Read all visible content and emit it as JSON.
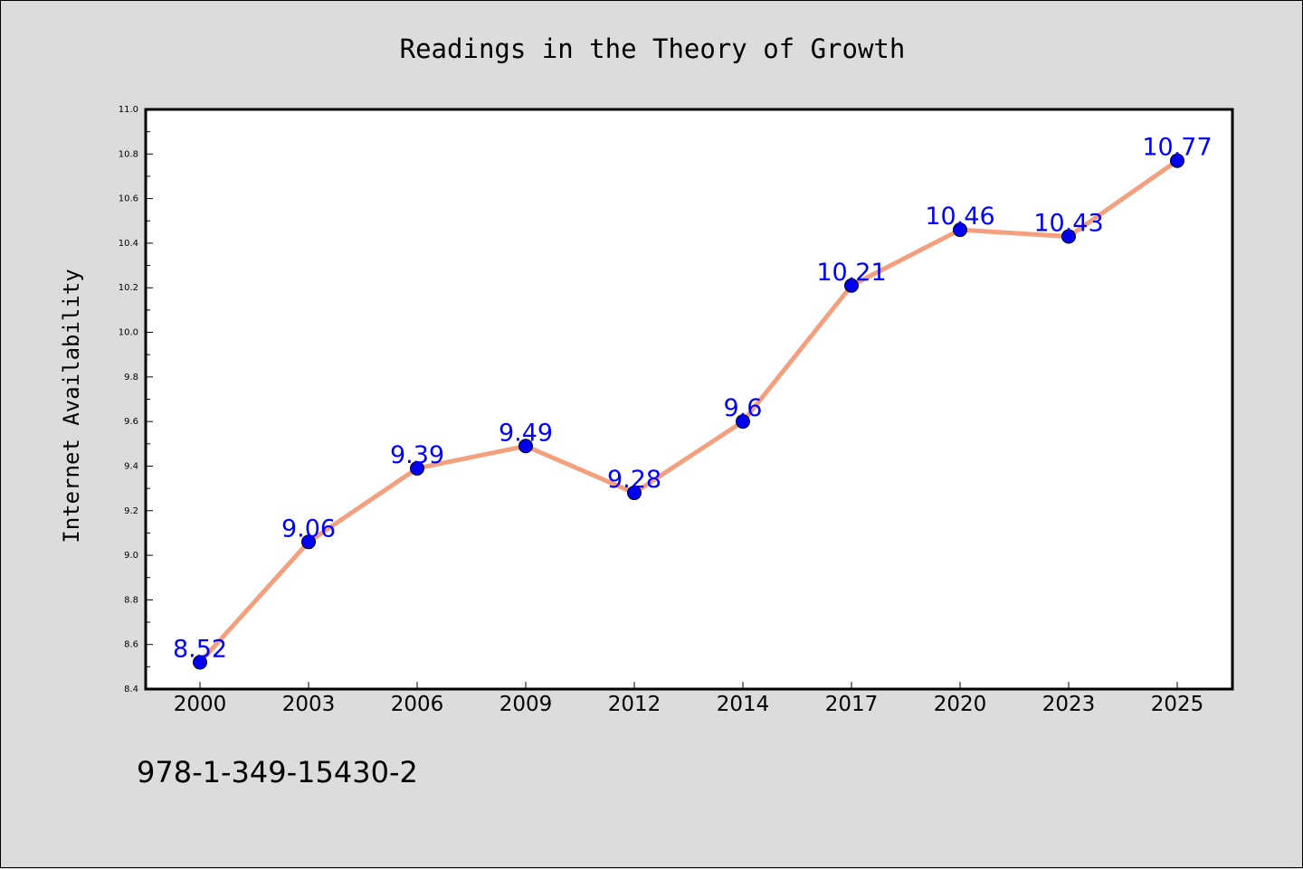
{
  "chart_data": {
    "type": "line",
    "title": "Readings in the Theory of Growth",
    "xlabel": "",
    "ylabel": "Internet Availability",
    "categories": [
      "2000",
      "2003",
      "2006",
      "2009",
      "2012",
      "2014",
      "2017",
      "2020",
      "2023",
      "2025"
    ],
    "series": [
      {
        "values": [
          8.52,
          9.06,
          9.39,
          9.49,
          9.28,
          9.6,
          10.21,
          10.46,
          10.43,
          10.77
        ],
        "labels": [
          "8.52",
          "9.06",
          "9.39",
          "9.49",
          "9.28",
          "9.6",
          "10.21",
          "10.46",
          "10.43",
          "10.77"
        ],
        "line_color": "#f4a07e",
        "marker_color": "#0000ee",
        "label_color": "#0000ff"
      }
    ],
    "ylim": [
      8.4,
      11.0
    ],
    "yticks": [
      "8.4",
      "8.6",
      "8.8",
      "9.0",
      "9.2",
      "9.4",
      "9.6",
      "9.8",
      "10.0",
      "10.2",
      "10.4",
      "10.6",
      "10.8",
      "11.0"
    ],
    "grid": false,
    "legend": "none"
  },
  "footer": {
    "isbn": "978-1-349-15430-2"
  },
  "colors": {
    "background": "#dcdcdc",
    "plot_background": "#ffffff",
    "axis": "#000000"
  }
}
